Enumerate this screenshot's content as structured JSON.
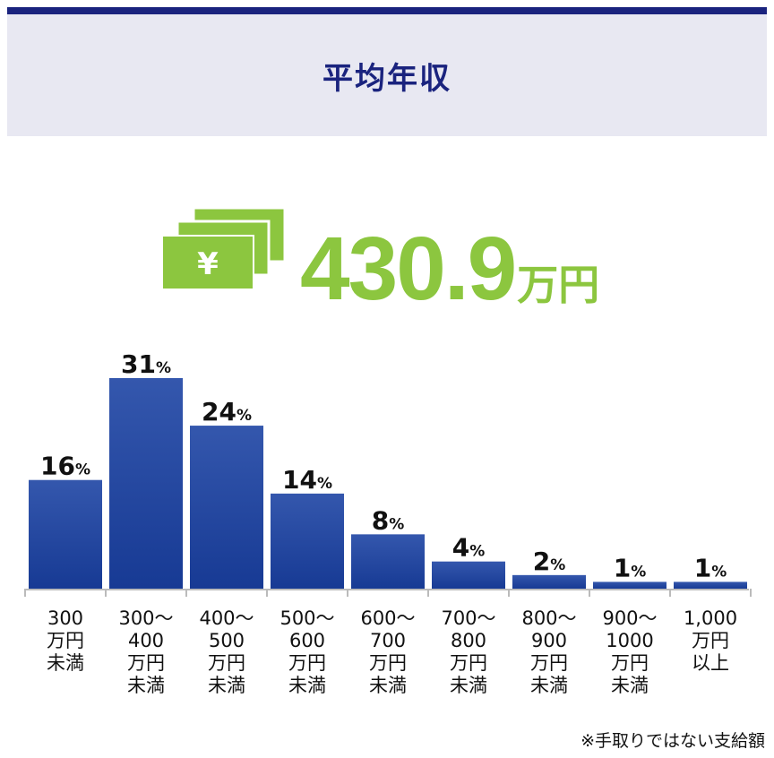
{
  "header": {
    "title": "平均年収"
  },
  "summary": {
    "amount_value": "430.9",
    "amount_unit": "万円",
    "icon": "yen-banknotes-icon",
    "accent_color": "#8cc63f"
  },
  "chart_data": {
    "type": "bar",
    "title": "",
    "xlabel": "",
    "ylabel": "",
    "value_suffix": "%",
    "bar_color": "#1e3f9a",
    "categories": [
      [
        "300",
        "万円",
        "未満"
      ],
      [
        "300〜",
        "400",
        "万円",
        "未満"
      ],
      [
        "400〜",
        "500",
        "万円",
        "未満"
      ],
      [
        "500〜",
        "600",
        "万円",
        "未満"
      ],
      [
        "600〜",
        "700",
        "万円",
        "未満"
      ],
      [
        "700〜",
        "800",
        "万円",
        "未満"
      ],
      [
        "800〜",
        "900",
        "万円",
        "未満"
      ],
      [
        "900〜",
        "1000",
        "万円",
        "未満"
      ],
      [
        "1,000",
        "万円",
        "以上"
      ]
    ],
    "values": [
      16,
      31,
      24,
      14,
      8,
      4,
      2,
      1,
      1
    ],
    "ylim": [
      0,
      31
    ],
    "grid": false,
    "legend": "none"
  },
  "footnote": "※手取りではない支給額"
}
